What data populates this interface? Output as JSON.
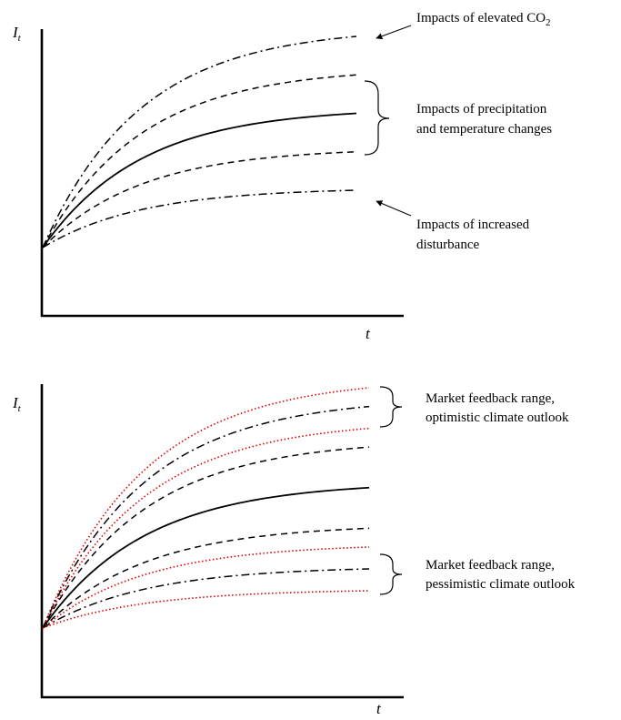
{
  "panels": [
    {
      "y_label": "I",
      "y_label_sub": "t",
      "x_label": "t",
      "curves": [
        {
          "style": "dashdot",
          "color": "#000000",
          "end_level": 0.88
        },
        {
          "style": "dashed",
          "color": "#000000",
          "end_level": 0.75
        },
        {
          "style": "solid",
          "color": "#000000",
          "end_level": 0.62
        },
        {
          "style": "dashed",
          "color": "#000000",
          "end_level": 0.49
        },
        {
          "style": "dashdot",
          "color": "#000000",
          "end_level": 0.36
        }
      ],
      "annotations": [
        {
          "text": "Impacts of elevated CO",
          "sub": "2"
        },
        {
          "lines": [
            "Impacts of precipitation",
            "and temperature changes"
          ]
        },
        {
          "lines": [
            "Impacts of increased",
            "disturbance"
          ]
        }
      ]
    },
    {
      "y_label": "I",
      "y_label_sub": "t",
      "x_label": "t",
      "curves": [
        {
          "style": "dotted",
          "color": "#dd0000",
          "end_level": 0.93
        },
        {
          "style": "dashdot",
          "color": "#000000",
          "end_level": 0.87
        },
        {
          "style": "dotted",
          "color": "#dd0000",
          "end_level": 0.8
        },
        {
          "style": "dashed",
          "color": "#000000",
          "end_level": 0.74
        },
        {
          "style": "solid",
          "color": "#000000",
          "end_level": 0.61
        },
        {
          "style": "dashed",
          "color": "#000000",
          "end_level": 0.48
        },
        {
          "style": "dotted",
          "color": "#dd0000",
          "end_level": 0.42
        },
        {
          "style": "dashdot",
          "color": "#000000",
          "end_level": 0.35
        },
        {
          "style": "dotted",
          "color": "#dd0000",
          "end_level": 0.28
        }
      ],
      "annotations": [
        {
          "lines": [
            "Market feedback range,",
            "optimistic climate outlook"
          ]
        },
        {
          "lines": [
            "Market feedback range,",
            "pessimistic climate outlook"
          ]
        }
      ]
    }
  ]
}
